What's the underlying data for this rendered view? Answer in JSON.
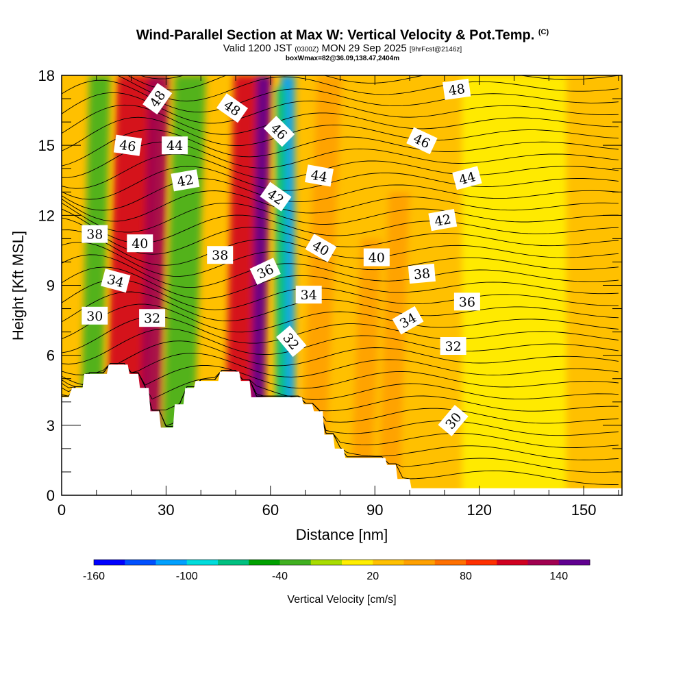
{
  "title": {
    "main": "Wind-Parallel Section at Max W: Vertical Velocity & Pot.Temp.",
    "copyright": "(C)",
    "valid_prefix": "Valid 1200 JST",
    "valid_utc": "(0300Z)",
    "valid_date": "MON 29 Sep 2025",
    "forecast": "[9hrFcst@2146z]",
    "box_info": "boxWmax=82@36.09,138.47,2404m"
  },
  "chart_data": {
    "type": "heatmap",
    "xlabel": "Distance [nm]",
    "ylabel": "Height [Kft MSL]",
    "xlim": [
      0,
      161
    ],
    "ylim": [
      0,
      18
    ],
    "x_ticks": [
      0,
      30,
      60,
      90,
      120,
      150
    ],
    "y_ticks": [
      0,
      3,
      6,
      9,
      12,
      15,
      18
    ],
    "colorbar": {
      "title": "Vertical Velocity [cm/s]",
      "range": [
        -160,
        160
      ],
      "tick_values": [
        -160,
        -100,
        -40,
        20,
        80,
        140
      ],
      "tick_labels": [
        "-160",
        "-100",
        "-40",
        "20",
        "80",
        "140"
      ],
      "colors": [
        "#0000ff",
        "#0050ff",
        "#00a0ff",
        "#00dcdc",
        "#00c080",
        "#00a000",
        "#40b020",
        "#a8dc00",
        "#ffee00",
        "#ffc000",
        "#ffa000",
        "#ff7000",
        "#ff3000",
        "#d00020",
        "#a00050",
        "#600090"
      ]
    },
    "terrain_profile": [
      [
        0,
        4.2
      ],
      [
        2,
        4.2
      ],
      [
        3,
        4.6
      ],
      [
        6,
        4.6
      ],
      [
        6.5,
        5.2
      ],
      [
        13,
        5.2
      ],
      [
        13.5,
        5.6
      ],
      [
        19,
        5.6
      ],
      [
        19.5,
        5.2
      ],
      [
        22,
        5.2
      ],
      [
        22.5,
        4.6
      ],
      [
        25,
        4.6
      ],
      [
        25.5,
        3.6
      ],
      [
        28,
        3.6
      ],
      [
        28.5,
        2.9
      ],
      [
        32,
        2.9
      ],
      [
        32.5,
        3.9
      ],
      [
        35,
        3.9
      ],
      [
        35.5,
        4.6
      ],
      [
        38,
        4.6
      ],
      [
        38.5,
        4.9
      ],
      [
        45,
        4.9
      ],
      [
        45.5,
        5.3
      ],
      [
        51,
        5.3
      ],
      [
        51.5,
        4.9
      ],
      [
        54,
        4.9
      ],
      [
        54.5,
        4.2
      ],
      [
        69,
        4.2
      ],
      [
        69.5,
        3.9
      ],
      [
        72,
        3.9
      ],
      [
        72.5,
        3.6
      ],
      [
        75,
        3.6
      ],
      [
        75.5,
        2.6
      ],
      [
        78,
        2.6
      ],
      [
        78.5,
        2.0
      ],
      [
        81,
        2.0
      ],
      [
        81.5,
        1.6
      ],
      [
        93,
        1.6
      ],
      [
        93.5,
        1.3
      ],
      [
        96,
        1.3
      ],
      [
        96.5,
        0.7
      ],
      [
        100,
        0.7
      ],
      [
        100.5,
        0.3
      ],
      [
        161,
        0.3
      ]
    ],
    "velocity_bands": [
      {
        "x": 22,
        "width": 12,
        "top": 18,
        "value": 100,
        "lean": 4
      },
      {
        "x": 28,
        "width": 6,
        "top": 18,
        "value": 130,
        "lean": 3
      },
      {
        "x": 55,
        "width": 11,
        "top": 18,
        "value": 100,
        "lean": 3
      },
      {
        "x": 58,
        "width": 4,
        "top": 18,
        "value": 140,
        "lean": 2
      },
      {
        "x": 65,
        "width": 4,
        "top": 18,
        "value": -110,
        "lean": 0
      },
      {
        "x": 63,
        "width": 3,
        "top": 17.5,
        "value": -70,
        "lean": 0
      },
      {
        "x": 11,
        "width": 6,
        "top": 18,
        "value": -40,
        "lean": 3
      },
      {
        "x": 37,
        "width": 9,
        "top": 18,
        "value": -30,
        "lean": 4
      },
      {
        "x": 77,
        "width": 7,
        "top": 18,
        "value": 50,
        "lean": 5
      },
      {
        "x": 89,
        "width": 6,
        "top": 11,
        "value": 40,
        "lean": 3
      },
      {
        "x": 97,
        "width": 6,
        "top": 13,
        "value": 40,
        "lean": 3
      },
      {
        "x": 130,
        "width": 30,
        "top": 18,
        "value": 0,
        "lean": 0
      }
    ],
    "theta_levels": [
      30,
      32,
      34,
      36,
      38,
      40,
      42,
      44,
      46,
      48
    ],
    "contour_labels": [
      {
        "text": "48",
        "x": 27.5,
        "y": 17.0,
        "rot": -55
      },
      {
        "text": "48",
        "x": 49,
        "y": 16.6,
        "rot": 35
      },
      {
        "text": "48",
        "x": 113.5,
        "y": 17.4,
        "rot": -8
      },
      {
        "text": "46",
        "x": 19,
        "y": 15.0,
        "rot": 8
      },
      {
        "text": "46",
        "x": 62.5,
        "y": 15.6,
        "rot": 45
      },
      {
        "text": "46",
        "x": 103.5,
        "y": 15.2,
        "rot": 25
      },
      {
        "text": "44",
        "x": 32.5,
        "y": 15.0,
        "rot": 0
      },
      {
        "text": "44",
        "x": 74,
        "y": 13.7,
        "rot": 10
      },
      {
        "text": "44",
        "x": 116.5,
        "y": 13.6,
        "rot": -15
      },
      {
        "text": "42",
        "x": 35.5,
        "y": 13.5,
        "rot": -10
      },
      {
        "text": "42",
        "x": 61.5,
        "y": 12.8,
        "rot": 35
      },
      {
        "text": "42",
        "x": 109.5,
        "y": 11.8,
        "rot": -10
      },
      {
        "text": "40",
        "x": 22.5,
        "y": 10.8,
        "rot": 0
      },
      {
        "text": "40",
        "x": 74.5,
        "y": 10.6,
        "rot": 30
      },
      {
        "text": "40",
        "x": 90.5,
        "y": 10.2,
        "rot": 0
      },
      {
        "text": "38",
        "x": 9.5,
        "y": 11.2,
        "rot": 0
      },
      {
        "text": "38",
        "x": 45.5,
        "y": 10.3,
        "rot": 0
      },
      {
        "text": "38",
        "x": 103.5,
        "y": 9.5,
        "rot": -5
      },
      {
        "text": "36",
        "x": 58.5,
        "y": 9.6,
        "rot": -25
      },
      {
        "text": "36",
        "x": 116.5,
        "y": 8.3,
        "rot": 0
      },
      {
        "text": "34",
        "x": 15.5,
        "y": 9.2,
        "rot": 15
      },
      {
        "text": "34",
        "x": 71,
        "y": 8.6,
        "rot": 0
      },
      {
        "text": "34",
        "x": 99.5,
        "y": 7.5,
        "rot": -30
      },
      {
        "text": "32",
        "x": 26,
        "y": 7.6,
        "rot": 0
      },
      {
        "text": "32",
        "x": 66,
        "y": 6.6,
        "rot": 50
      },
      {
        "text": "32",
        "x": 112.5,
        "y": 6.4,
        "rot": 0
      },
      {
        "text": "30",
        "x": 9.5,
        "y": 7.7,
        "rot": 0
      },
      {
        "text": "30",
        "x": 112.5,
        "y": 3.2,
        "rot": -50
      }
    ]
  }
}
